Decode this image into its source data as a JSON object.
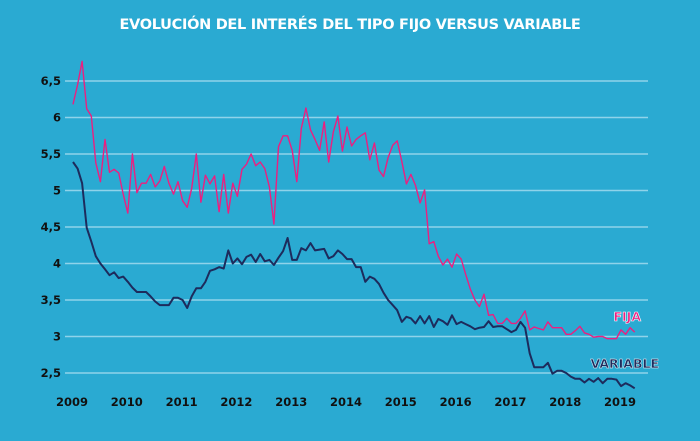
{
  "chart_data": {
    "type": "line",
    "title": "EVOLUCIÓN DEL INTERÉS DEL TIPO FIJO VERSUS VARIABLE",
    "xlabel": "",
    "ylabel": "",
    "ylim": [
      2.5,
      6.5
    ],
    "yticks": [
      "2,5",
      "3",
      "3,5",
      "4",
      "4,5",
      "5",
      "5,5",
      "6",
      "6,5"
    ],
    "ytick_values": [
      2.5,
      3,
      3.5,
      4,
      4.5,
      5,
      5.5,
      6,
      6.5
    ],
    "xticks": [
      "2009",
      "2010",
      "2011",
      "2012",
      "2013",
      "2014",
      "2015",
      "2016",
      "2017",
      "2018",
      "2019"
    ],
    "grid": "horizontal",
    "x_start": "2009-01",
    "x_frequency": "monthly",
    "colors": {
      "background": "#2aaad2",
      "fija": "#ec1f80",
      "variable": "#1d2b5c",
      "grid": "#8fd3ea",
      "title": "#ffffff"
    },
    "series": [
      {
        "name": "FIJA",
        "color": "#ec1f80",
        "values": [
          6.18,
          6.45,
          6.77,
          6.12,
          6.02,
          5.38,
          5.12,
          5.7,
          5.25,
          5.29,
          5.24,
          4.95,
          4.69,
          5.5,
          4.97,
          5.1,
          5.1,
          5.22,
          5.05,
          5.13,
          5.33,
          5.1,
          4.95,
          5.12,
          4.86,
          4.77,
          5.03,
          5.5,
          4.84,
          5.21,
          5.09,
          5.2,
          4.71,
          5.22,
          4.69,
          5.1,
          4.92,
          5.29,
          5.36,
          5.5,
          5.34,
          5.39,
          5.3,
          5.05,
          4.54,
          5.6,
          5.75,
          5.75,
          5.55,
          5.12,
          5.85,
          6.13,
          5.83,
          5.7,
          5.55,
          5.94,
          5.39,
          5.8,
          6.02,
          5.54,
          5.87,
          5.61,
          5.7,
          5.75,
          5.79,
          5.42,
          5.65,
          5.28,
          5.19,
          5.45,
          5.62,
          5.68,
          5.4,
          5.09,
          5.22,
          5.07,
          4.83,
          5.01,
          4.27,
          4.3,
          4.1,
          3.98,
          4.06,
          3.95,
          4.13,
          4.06,
          3.85,
          3.65,
          3.5,
          3.41,
          3.58,
          3.29,
          3.3,
          3.18,
          3.18,
          3.25,
          3.18,
          3.18,
          3.25,
          3.35,
          3.09,
          3.13,
          3.11,
          3.09,
          3.2,
          3.12,
          3.12,
          3.12,
          3.03,
          3.03,
          3.08,
          3.14,
          3.05,
          3.03,
          2.99,
          3.0,
          3.0,
          2.97,
          2.97,
          2.97,
          3.09,
          3.03,
          3.12,
          3.06
        ]
      },
      {
        "name": "VARIABLE",
        "color": "#1d2b5c",
        "values": [
          5.39,
          5.3,
          5.1,
          4.49,
          4.3,
          4.1,
          4.0,
          3.92,
          3.84,
          3.88,
          3.8,
          3.82,
          3.75,
          3.67,
          3.61,
          3.61,
          3.61,
          3.55,
          3.48,
          3.43,
          3.43,
          3.43,
          3.53,
          3.53,
          3.5,
          3.39,
          3.55,
          3.66,
          3.66,
          3.75,
          3.9,
          3.92,
          3.95,
          3.93,
          4.18,
          4.0,
          4.07,
          3.99,
          4.09,
          4.12,
          4.02,
          4.13,
          4.03,
          4.05,
          3.98,
          4.08,
          4.17,
          4.35,
          4.05,
          4.05,
          4.21,
          4.18,
          4.28,
          4.18,
          4.19,
          4.2,
          4.07,
          4.1,
          4.18,
          4.13,
          4.06,
          4.06,
          3.95,
          3.95,
          3.75,
          3.82,
          3.79,
          3.72,
          3.6,
          3.5,
          3.43,
          3.36,
          3.2,
          3.27,
          3.25,
          3.18,
          3.28,
          3.18,
          3.28,
          3.13,
          3.24,
          3.21,
          3.16,
          3.29,
          3.17,
          3.2,
          3.17,
          3.14,
          3.1,
          3.12,
          3.13,
          3.21,
          3.13,
          3.14,
          3.14,
          3.1,
          3.06,
          3.09,
          3.2,
          3.12,
          2.77,
          2.58,
          2.58,
          2.58,
          2.64,
          2.49,
          2.53,
          2.53,
          2.5,
          2.45,
          2.42,
          2.42,
          2.37,
          2.42,
          2.38,
          2.43,
          2.36,
          2.42,
          2.42,
          2.41,
          2.32,
          2.36,
          2.33,
          2.29
        ]
      }
    ]
  }
}
